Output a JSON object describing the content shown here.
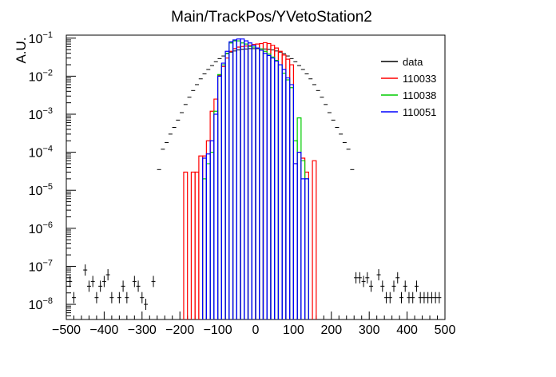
{
  "chart_data": {
    "type": "line",
    "title": "Main/TrackPos/YVetoStation2",
    "xlabel": "",
    "ylabel": "A.U.",
    "xlim": [
      -500,
      500
    ],
    "ylim": [
      4e-09,
      0.12
    ],
    "y_scale": "log",
    "grid": false,
    "legend_position": "top-right",
    "x_ticks": [
      {
        "v": -500,
        "label": "−500"
      },
      {
        "v": -400,
        "label": "−400"
      },
      {
        "v": -300,
        "label": "−300"
      },
      {
        "v": -200,
        "label": "−200"
      },
      {
        "v": -100,
        "label": "−100"
      },
      {
        "v": 0,
        "label": "0"
      },
      {
        "v": 100,
        "label": "100"
      },
      {
        "v": 200,
        "label": "200"
      },
      {
        "v": 300,
        "label": "300"
      },
      {
        "v": 400,
        "label": "400"
      },
      {
        "v": 500,
        "label": "500"
      }
    ],
    "y_ticks": [
      {
        "v": 1e-08,
        "base": "10",
        "exp": "−8"
      },
      {
        "v": 1e-07,
        "base": "10",
        "exp": "−7"
      },
      {
        "v": 1e-06,
        "base": "10",
        "exp": "−6"
      },
      {
        "v": 1e-05,
        "base": "10",
        "exp": "−5"
      },
      {
        "v": 0.0001,
        "base": "10",
        "exp": "−4"
      },
      {
        "v": 0.001,
        "base": "10",
        "exp": "−3"
      },
      {
        "v": 0.01,
        "base": "10",
        "exp": "−2"
      },
      {
        "v": 0.1,
        "base": "10",
        "exp": "−1"
      }
    ],
    "series": [
      {
        "name": "data",
        "color": "#000000",
        "style": "points",
        "points": [
          [
            -490,
            4e-08
          ],
          [
            -480,
            1.5e-08
          ],
          [
            -450,
            8e-08
          ],
          [
            -440,
            3e-08
          ],
          [
            -430,
            4e-08
          ],
          [
            -420,
            1.5e-08
          ],
          [
            -410,
            3e-08
          ],
          [
            -400,
            4e-08
          ],
          [
            -390,
            6e-08
          ],
          [
            -380,
            1.5e-08
          ],
          [
            -360,
            1.5e-08
          ],
          [
            -350,
            3e-08
          ],
          [
            -340,
            1.5e-08
          ],
          [
            -320,
            4e-08
          ],
          [
            -310,
            3e-08
          ],
          [
            -300,
            1.5e-08
          ],
          [
            -290,
            1e-08
          ],
          [
            -270,
            4e-08
          ],
          [
            -255,
            3.5e-05
          ],
          [
            -245,
            0.00012
          ],
          [
            -235,
            0.00018
          ],
          [
            -225,
            0.0003
          ],
          [
            -215,
            0.00045
          ],
          [
            -205,
            0.0007
          ],
          [
            -195,
            0.0011
          ],
          [
            -185,
            0.0018
          ],
          [
            -175,
            0.0028
          ],
          [
            -165,
            0.0042
          ],
          [
            -155,
            0.006
          ],
          [
            -145,
            0.0085
          ],
          [
            -135,
            0.0115
          ],
          [
            -125,
            0.015
          ],
          [
            -115,
            0.019
          ],
          [
            -105,
            0.024
          ],
          [
            -95,
            0.029
          ],
          [
            -85,
            0.034
          ],
          [
            -75,
            0.039
          ],
          [
            -65,
            0.043
          ],
          [
            -55,
            0.046
          ],
          [
            -45,
            0.049
          ],
          [
            -35,
            0.051
          ],
          [
            -25,
            0.052
          ],
          [
            -15,
            0.053
          ],
          [
            -5,
            0.053
          ],
          [
            5,
            0.053
          ],
          [
            15,
            0.052
          ],
          [
            25,
            0.052
          ],
          [
            35,
            0.051
          ],
          [
            45,
            0.049
          ],
          [
            55,
            0.046
          ],
          [
            65,
            0.043
          ],
          [
            75,
            0.039
          ],
          [
            85,
            0.034
          ],
          [
            95,
            0.029
          ],
          [
            105,
            0.024
          ],
          [
            115,
            0.019
          ],
          [
            125,
            0.015
          ],
          [
            135,
            0.0115
          ],
          [
            145,
            0.0085
          ],
          [
            155,
            0.006
          ],
          [
            165,
            0.0042
          ],
          [
            175,
            0.0028
          ],
          [
            185,
            0.0018
          ],
          [
            195,
            0.0011
          ],
          [
            205,
            0.0007
          ],
          [
            215,
            0.00045
          ],
          [
            225,
            0.0003
          ],
          [
            235,
            0.00018
          ],
          [
            245,
            0.00012
          ],
          [
            255,
            3.5e-05
          ],
          [
            265,
            5e-08
          ],
          [
            275,
            5e-08
          ],
          [
            285,
            4e-08
          ],
          [
            295,
            5e-08
          ],
          [
            305,
            3e-08
          ],
          [
            325,
            6e-08
          ],
          [
            335,
            3e-08
          ],
          [
            345,
            1.5e-08
          ],
          [
            355,
            1.5e-08
          ],
          [
            365,
            3e-08
          ],
          [
            375,
            5e-08
          ],
          [
            385,
            1.5e-08
          ],
          [
            395,
            3e-08
          ],
          [
            405,
            1.5e-08
          ],
          [
            415,
            1.5e-08
          ],
          [
            425,
            3e-08
          ],
          [
            435,
            1.5e-08
          ],
          [
            445,
            1.5e-08
          ],
          [
            455,
            1.5e-08
          ],
          [
            465,
            1.5e-08
          ],
          [
            475,
            1.5e-08
          ],
          [
            485,
            1.5e-08
          ]
        ]
      },
      {
        "name": "110033",
        "color": "#ff0000",
        "style": "hist",
        "bin_width": 10,
        "bins": [
          [
            -190,
            3e-05
          ],
          [
            -170,
            3e-05
          ],
          [
            -160,
            3e-05
          ],
          [
            -150,
            8e-05
          ],
          [
            -140,
            8e-05
          ],
          [
            -130,
            0.0002
          ],
          [
            -120,
            0.0012
          ],
          [
            -110,
            0.0025
          ],
          [
            -100,
            0.0105
          ],
          [
            -90,
            0.018
          ],
          [
            -80,
            0.03
          ],
          [
            -70,
            0.045
          ],
          [
            -60,
            0.053
          ],
          [
            -50,
            0.058
          ],
          [
            -40,
            0.06
          ],
          [
            -30,
            0.062
          ],
          [
            -20,
            0.065
          ],
          [
            -10,
            0.068
          ],
          [
            0,
            0.07
          ],
          [
            10,
            0.072
          ],
          [
            20,
            0.076
          ],
          [
            30,
            0.072
          ],
          [
            40,
            0.065
          ],
          [
            50,
            0.055
          ],
          [
            60,
            0.045
          ],
          [
            70,
            0.036
          ],
          [
            80,
            0.028
          ],
          [
            90,
            0.02
          ],
          [
            100,
            5e-05
          ],
          [
            110,
            0.0001
          ],
          [
            120,
            7e-05
          ],
          [
            130,
            3e-05
          ],
          [
            150,
            6e-05
          ]
        ]
      },
      {
        "name": "110038",
        "color": "#00cc00",
        "style": "hist",
        "bin_width": 10,
        "bins": [
          [
            -140,
            2e-05
          ],
          [
            -130,
            5e-05
          ],
          [
            -120,
            0.0001
          ],
          [
            -110,
            0.0012
          ],
          [
            -100,
            0.011
          ],
          [
            -90,
            0.02
          ],
          [
            -80,
            0.04
          ],
          [
            -70,
            0.075
          ],
          [
            -60,
            0.085
          ],
          [
            -50,
            0.085
          ],
          [
            -40,
            0.075
          ],
          [
            -30,
            0.07
          ],
          [
            -20,
            0.06
          ],
          [
            -10,
            0.058
          ],
          [
            0,
            0.055
          ],
          [
            10,
            0.052
          ],
          [
            20,
            0.045
          ],
          [
            30,
            0.038
          ],
          [
            40,
            0.032
          ],
          [
            50,
            0.026
          ],
          [
            60,
            0.02
          ],
          [
            70,
            0.012
          ],
          [
            80,
            0.008
          ],
          [
            90,
            0.005
          ],
          [
            100,
            0.0002
          ],
          [
            110,
            0.0008
          ],
          [
            120,
            6e-05
          ],
          [
            130,
            2e-05
          ]
        ]
      },
      {
        "name": "110051",
        "color": "#0000ff",
        "style": "hist",
        "bin_width": 10,
        "bins": [
          [
            -140,
            7e-05
          ],
          [
            -130,
            9e-05
          ],
          [
            -120,
            0.0002
          ],
          [
            -110,
            0.001
          ],
          [
            -100,
            0.01
          ],
          [
            -90,
            0.022
          ],
          [
            -80,
            0.045
          ],
          [
            -70,
            0.08
          ],
          [
            -60,
            0.09
          ],
          [
            -50,
            0.095
          ],
          [
            -40,
            0.095
          ],
          [
            -30,
            0.085
          ],
          [
            -20,
            0.075
          ],
          [
            -10,
            0.065
          ],
          [
            0,
            0.055
          ],
          [
            10,
            0.048
          ],
          [
            20,
            0.04
          ],
          [
            30,
            0.035
          ],
          [
            40,
            0.03
          ],
          [
            50,
            0.025
          ],
          [
            60,
            0.02
          ],
          [
            70,
            0.015
          ],
          [
            80,
            0.009
          ],
          [
            90,
            0.006
          ],
          [
            100,
            5e-05
          ],
          [
            110,
            0.0001
          ],
          [
            120,
            2e-05
          ],
          [
            130,
            2e-05
          ]
        ]
      }
    ]
  }
}
